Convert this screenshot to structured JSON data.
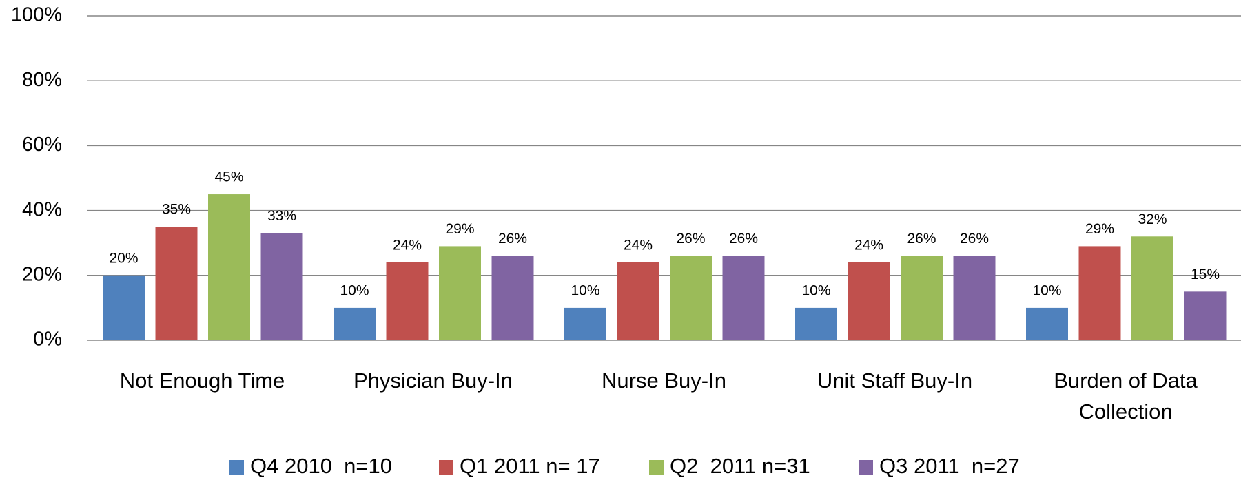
{
  "chart_data": {
    "type": "bar",
    "categories": [
      "Not Enough Time",
      "Physician Buy-In",
      "Nurse Buy-In",
      "Unit Staff Buy-In",
      "Burden of Data Collection"
    ],
    "series": [
      {
        "name": "Q4 2010  n=10",
        "color": "#4f81bd",
        "values": [
          20,
          10,
          10,
          10,
          10
        ],
        "value_labels": [
          "20%",
          "10%",
          "10%",
          "10%",
          "10%"
        ]
      },
      {
        "name": "Q1 2011 n= 17",
        "color": "#c0504d",
        "values": [
          35,
          24,
          24,
          24,
          29
        ],
        "value_labels": [
          "35%",
          "24%",
          "24%",
          "24%",
          "29%"
        ]
      },
      {
        "name": "Q2  2011 n=31",
        "color": "#9bbb59",
        "values": [
          45,
          29,
          26,
          26,
          32
        ],
        "value_labels": [
          "45%",
          "29%",
          "26%",
          "26%",
          "32%"
        ]
      },
      {
        "name": "Q3 2011  n=27",
        "color": "#8064a2",
        "values": [
          33,
          26,
          26,
          26,
          15
        ],
        "value_labels": [
          "33%",
          "26%",
          "26%",
          "26%",
          "15%"
        ]
      }
    ],
    "ylim": [
      0,
      100
    ],
    "yticks": [
      {
        "value": 0,
        "label": "0%"
      },
      {
        "value": 20,
        "label": "20%"
      },
      {
        "value": 40,
        "label": "40%"
      },
      {
        "value": 60,
        "label": "60%"
      },
      {
        "value": 80,
        "label": "80%"
      },
      {
        "value": 100,
        "label": "100%"
      }
    ],
    "grid": true,
    "legend": "bottom"
  }
}
